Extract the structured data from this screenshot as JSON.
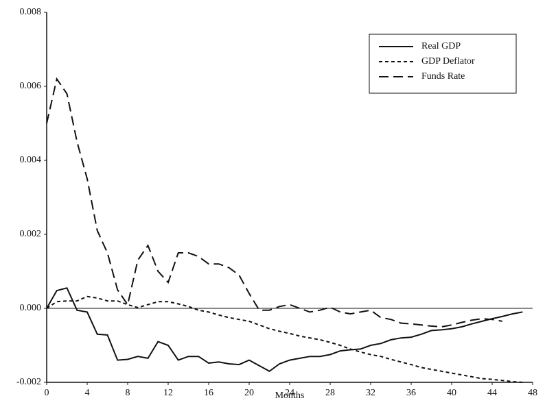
{
  "chart_data": {
    "type": "line",
    "xlabel": "Months",
    "x": [
      0,
      1,
      2,
      3,
      4,
      5,
      6,
      7,
      8,
      9,
      10,
      11,
      12,
      13,
      14,
      15,
      16,
      17,
      18,
      19,
      20,
      21,
      22,
      23,
      24,
      25,
      26,
      27,
      28,
      29,
      30,
      31,
      32,
      33,
      34,
      35,
      36,
      37,
      38,
      39,
      40,
      41,
      42,
      43,
      44,
      45,
      46,
      47
    ],
    "series": [
      {
        "name": "Real GDP",
        "color": "#111111",
        "dash": "solid",
        "values": [
          0,
          0.00048,
          0.00055,
          -5e-05,
          -0.0001,
          -0.0007,
          -0.00072,
          -0.0014,
          -0.00138,
          -0.0013,
          -0.00135,
          -0.0009,
          -0.001,
          -0.0014,
          -0.0013,
          -0.0013,
          -0.00148,
          -0.00145,
          -0.0015,
          -0.00152,
          -0.0014,
          -0.00155,
          -0.0017,
          -0.0015,
          -0.0014,
          -0.00135,
          -0.0013,
          -0.0013,
          -0.00125,
          -0.00115,
          -0.00112,
          -0.0011,
          -0.001,
          -0.00095,
          -0.00085,
          -0.0008,
          -0.00078,
          -0.0007,
          -0.0006,
          -0.00058,
          -0.00055,
          -0.0005,
          -0.00042,
          -0.00035,
          -0.00028,
          -0.00022,
          -0.00015,
          -0.0001
        ]
      },
      {
        "name": "GDP Deflator",
        "color": "#111111",
        "dash": "short",
        "values": [
          0,
          0.00018,
          0.0002,
          0.0002,
          0.00032,
          0.00028,
          0.0002,
          0.0002,
          0.0001,
          2e-05,
          0.0001,
          0.00018,
          0.00018,
          0.00012,
          5e-05,
          -5e-05,
          -0.0001,
          -0.00018,
          -0.00025,
          -0.0003,
          -0.00035,
          -0.00045,
          -0.00055,
          -0.00062,
          -0.00068,
          -0.00075,
          -0.0008,
          -0.00085,
          -0.00092,
          -0.001,
          -0.0011,
          -0.00118,
          -0.00125,
          -0.0013,
          -0.00138,
          -0.00145,
          -0.00152,
          -0.0016,
          -0.00165,
          -0.0017,
          -0.00175,
          -0.0018,
          -0.00185,
          -0.0019,
          -0.00192,
          -0.00195,
          -0.00198,
          -0.002
        ]
      },
      {
        "name": "Funds Rate",
        "color": "#111111",
        "dash": "long",
        "values": [
          0.005,
          0.0062,
          0.0058,
          0.0045,
          0.0035,
          0.0021,
          0.0015,
          0.0005,
          0.0001,
          0.0013,
          0.0017,
          0.001,
          0.0007,
          0.0015,
          0.0015,
          0.0014,
          0.0012,
          0.0012,
          0.0011,
          0.0009,
          0.0004,
          -5e-05,
          -5e-05,
          5e-05,
          0.0001,
          0,
          -0.0001,
          -5e-05,
          3e-05,
          -0.0001,
          -0.00015,
          -0.0001,
          -5e-05,
          -0.00025,
          -0.0003,
          -0.0004,
          -0.00042,
          -0.00045,
          -0.00048,
          -0.0005,
          -0.00045,
          -0.00038,
          -0.00032,
          -0.00028,
          -0.0003,
          -0.00035,
          null,
          null
        ]
      }
    ],
    "xlim": [
      0,
      48
    ],
    "xticks": [
      0,
      4,
      8,
      12,
      16,
      20,
      24,
      28,
      32,
      36,
      40,
      44,
      48
    ],
    "ylim": [
      -0.002,
      0.008
    ],
    "yticks": [
      {
        "value": -0.002,
        "label": "-0.002"
      },
      {
        "value": 0,
        "label": "0.000"
      },
      {
        "value": 0.002,
        "label": "0.002"
      },
      {
        "value": 0.004,
        "label": "0.004"
      },
      {
        "value": 0.006,
        "label": "0.006"
      },
      {
        "value": 0.008,
        "label": "0.008"
      }
    ],
    "zero_line": true,
    "legend": "upper right"
  }
}
